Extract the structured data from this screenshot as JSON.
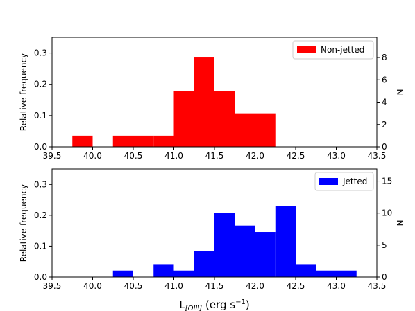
{
  "chart_data": [
    {
      "type": "bar",
      "subtype": "histogram",
      "legend": {
        "label": "Non-jetted",
        "placement": "top-right"
      },
      "color": "#ff0000",
      "ylabel_left": "Relative frequency",
      "ylabel_right": "N",
      "xlim": [
        39.5,
        43.5
      ],
      "ylim_left": [
        0,
        0.35
      ],
      "ylim_right": [
        0,
        9.8
      ],
      "x_ticks": [
        "39.5",
        "40.0",
        "40.5",
        "41.0",
        "41.5",
        "42.0",
        "42.5",
        "43.0",
        "43.5"
      ],
      "y_ticks_left": [
        "0.0",
        "0.1",
        "0.2",
        "0.3"
      ],
      "y_ticks_right": [
        "0",
        "2",
        "4",
        "6",
        "8"
      ],
      "bins": [
        {
          "start": 39.75,
          "end": 40.0,
          "value": 0.0357
        },
        {
          "start": 40.0,
          "end": 40.25,
          "value": 0
        },
        {
          "start": 40.25,
          "end": 40.5,
          "value": 0.0357
        },
        {
          "start": 40.5,
          "end": 40.75,
          "value": 0.0357
        },
        {
          "start": 40.75,
          "end": 41.0,
          "value": 0.0357
        },
        {
          "start": 41.0,
          "end": 41.25,
          "value": 0.1786
        },
        {
          "start": 41.25,
          "end": 41.5,
          "value": 0.2857
        },
        {
          "start": 41.5,
          "end": 41.75,
          "value": 0.1786
        },
        {
          "start": 41.75,
          "end": 42.0,
          "value": 0.1071
        },
        {
          "start": 42.0,
          "end": 42.25,
          "value": 0.1071
        }
      ]
    },
    {
      "type": "bar",
      "subtype": "histogram",
      "legend": {
        "label": "Jetted",
        "placement": "top-right"
      },
      "color": "#0000ff",
      "ylabel_left": "Relative frequency",
      "ylabel_right": "N",
      "xlabel": "L",
      "xlabel_sub": "[OIII]",
      "xlabel_unit": " (erg s",
      "xlabel_exp": "−1",
      "xlabel_close": ")",
      "xlim": [
        39.5,
        43.5
      ],
      "ylim_left": [
        0,
        0.35
      ],
      "ylim_right": [
        0,
        16.9
      ],
      "x_ticks": [
        "39.5",
        "40.0",
        "40.5",
        "41.0",
        "41.5",
        "42.0",
        "42.5",
        "43.0",
        "43.5"
      ],
      "y_ticks_left": [
        "0.0",
        "0.1",
        "0.2",
        "0.3"
      ],
      "y_ticks_right": [
        "0",
        "5",
        "10",
        "15"
      ],
      "bins": [
        {
          "start": 40.25,
          "end": 40.5,
          "value": 0.0208
        },
        {
          "start": 40.5,
          "end": 40.75,
          "value": 0
        },
        {
          "start": 40.75,
          "end": 41.0,
          "value": 0.0417
        },
        {
          "start": 41.0,
          "end": 41.25,
          "value": 0.0208
        },
        {
          "start": 41.25,
          "end": 41.5,
          "value": 0.0833
        },
        {
          "start": 41.5,
          "end": 41.75,
          "value": 0.2083
        },
        {
          "start": 41.75,
          "end": 42.0,
          "value": 0.1667
        },
        {
          "start": 42.0,
          "end": 42.25,
          "value": 0.1458
        },
        {
          "start": 42.25,
          "end": 42.5,
          "value": 0.2292
        },
        {
          "start": 42.5,
          "end": 42.75,
          "value": 0.0417
        },
        {
          "start": 42.75,
          "end": 43.0,
          "value": 0.0208
        },
        {
          "start": 43.0,
          "end": 43.25,
          "value": 0.0208
        }
      ]
    }
  ]
}
